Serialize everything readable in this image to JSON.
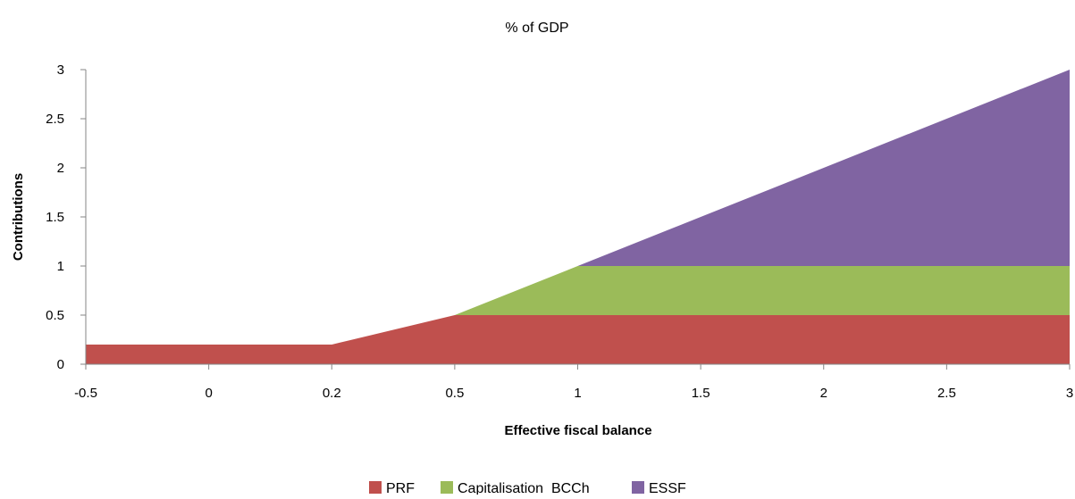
{
  "chart_data": {
    "type": "area",
    "stacked": true,
    "title": "% of GDP",
    "xlabel": "Effective fiscal balance",
    "ylabel": "Contributions",
    "categories": [
      "-0.5",
      "0",
      "0.2",
      "0.5",
      "1",
      "1.5",
      "2",
      "2.5",
      "3"
    ],
    "ylim": [
      0,
      3
    ],
    "yticks": [
      "0",
      "0.5",
      "1",
      "1.5",
      "2",
      "2.5",
      "3"
    ],
    "grid": false,
    "legend_position": "bottom",
    "series": [
      {
        "name": "PRF",
        "color": "#c0504d",
        "values": [
          0.2,
          0.2,
          0.2,
          0.5,
          0.5,
          0.5,
          0.5,
          0.5,
          0.5
        ]
      },
      {
        "name": "Capitalisation  BCCh",
        "color": "#9bbb59",
        "values": [
          0,
          0,
          0,
          0,
          0.5,
          0.5,
          0.5,
          0.5,
          0.5
        ]
      },
      {
        "name": "ESSF",
        "color": "#8064a2",
        "values": [
          0,
          0,
          0,
          0,
          0,
          0.5,
          1.0,
          1.5,
          2.0
        ]
      }
    ]
  }
}
